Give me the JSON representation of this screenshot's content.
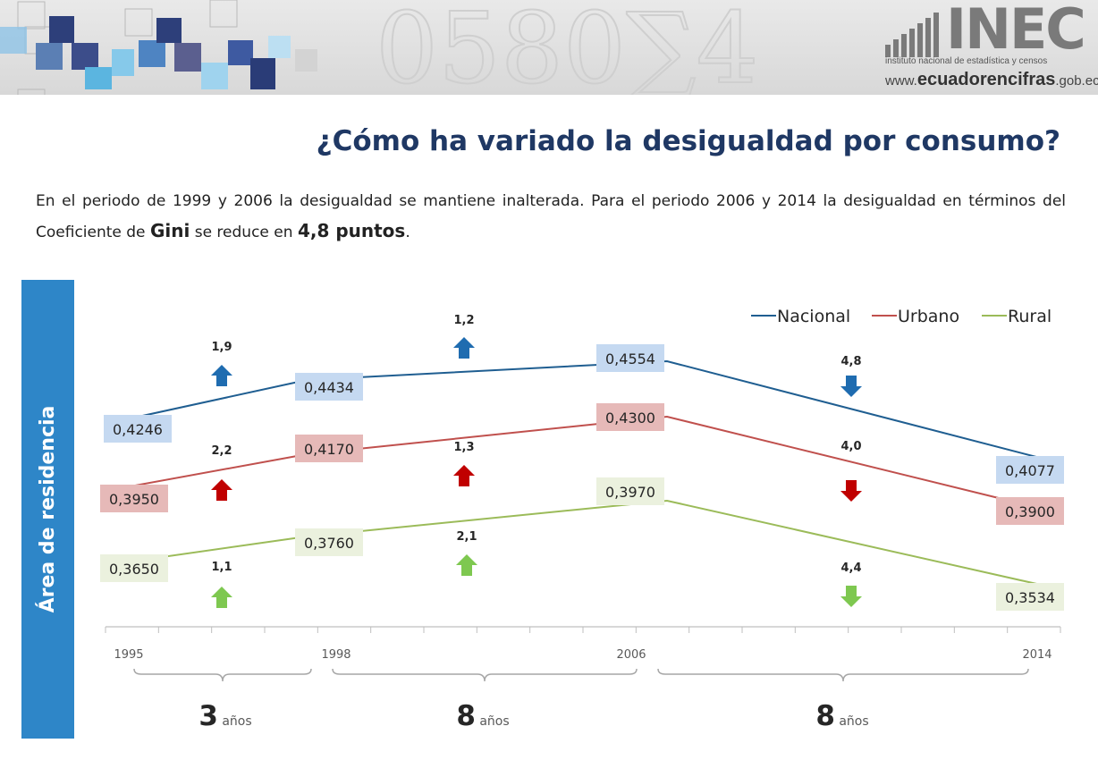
{
  "header": {
    "logo_text": "INEC",
    "logo_subtitle": "instituto nacional de estadística y censos",
    "logo_web_prefix": "www.",
    "logo_web_main": "ecuadorencifras",
    "logo_web_suffix": ".gob.ec"
  },
  "title": "¿Cómo ha variado la desigualdad por consumo?",
  "subtitle": {
    "part1": "En el periodo de 1999 y 2006 la desigualdad se mantiene inalterada. Para el periodo 2006 y 2014 la desigualdad en términos del Coeficiente de ",
    "bold1": "Gini",
    "part2": " se reduce en ",
    "bold2": "4,8 puntos",
    "part3": "."
  },
  "side_label": "Área de residencia",
  "colors": {
    "nacional": "#1f5e91",
    "urbano": "#c0504d",
    "rural": "#9bbb59",
    "nacional_label_bg": "#c5d9f1",
    "urbano_label_bg": "#e6b9b8",
    "rural_label_bg": "#ebf1de",
    "arrow_nacional": "#1f6cb0",
    "arrow_urbano": "#c00000",
    "arrow_rural": "#7ec850",
    "side_bar": "#2e86c8",
    "title": "#1f3864"
  },
  "chart_data": {
    "type": "line",
    "x": [
      "1995",
      "1998",
      "2006",
      "2014"
    ],
    "series": [
      {
        "name": "Nacional",
        "values": [
          0.4246,
          0.4434,
          0.4554,
          0.4077
        ],
        "labels": [
          "0,4246",
          "0,4434",
          "0,4554",
          "0,4077"
        ]
      },
      {
        "name": "Urbano",
        "values": [
          0.395,
          0.417,
          0.43,
          0.39
        ],
        "labels": [
          "0,3950",
          "0,4170",
          "0,4300",
          "0,3900"
        ]
      },
      {
        "name": "Rural",
        "values": [
          0.365,
          0.376,
          0.397,
          0.3534
        ],
        "labels": [
          "0,3650",
          "0,3760",
          "0,3970",
          "0,3534"
        ]
      }
    ],
    "changes": [
      {
        "series": "Nacional",
        "period": 1,
        "value": "1,9",
        "direction": "up"
      },
      {
        "series": "Nacional",
        "period": 2,
        "value": "1,2",
        "direction": "up"
      },
      {
        "series": "Nacional",
        "period": 3,
        "value": "4,8",
        "direction": "down"
      },
      {
        "series": "Urbano",
        "period": 1,
        "value": "2,2",
        "direction": "up"
      },
      {
        "series": "Urbano",
        "period": 2,
        "value": "1,3",
        "direction": "up"
      },
      {
        "series": "Urbano",
        "period": 3,
        "value": "4,0",
        "direction": "down"
      },
      {
        "series": "Rural",
        "period": 1,
        "value": "1,1",
        "direction": "up"
      },
      {
        "series": "Rural",
        "period": 2,
        "value": "2,1",
        "direction": "up"
      },
      {
        "series": "Rural",
        "period": 3,
        "value": "4,4",
        "direction": "down"
      }
    ],
    "periods": [
      {
        "number": "3",
        "unit": "años"
      },
      {
        "number": "8",
        "unit": "años"
      },
      {
        "number": "8",
        "unit": "años"
      }
    ],
    "legend_position": "top-right",
    "grid": false
  }
}
